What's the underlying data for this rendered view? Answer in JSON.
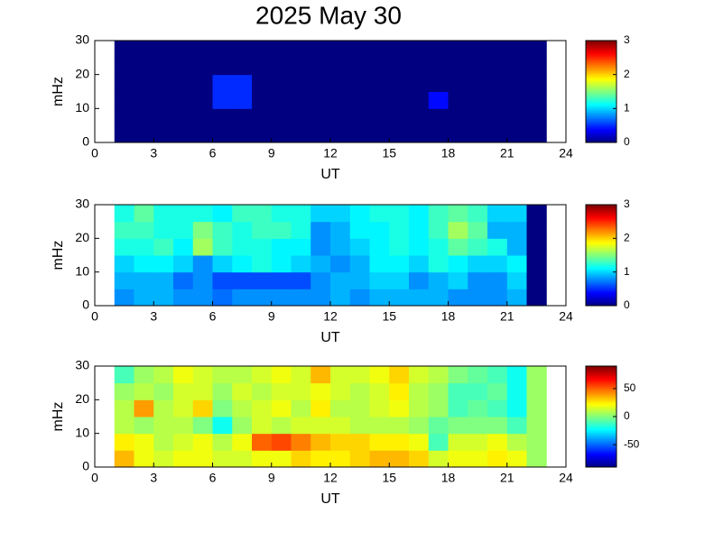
{
  "chart_data": [
    {
      "type": "heatmap",
      "title": "2025 May 30",
      "xlabel": "UT",
      "ylabel": "mHz",
      "colormap": "jet",
      "xbins": [
        1,
        2,
        3,
        4,
        5,
        6,
        7,
        8,
        9,
        10,
        11,
        12,
        13,
        14,
        15,
        16,
        17,
        18,
        19,
        20,
        21,
        22,
        23
      ],
      "ybins": [
        0,
        5,
        10,
        15,
        20,
        25,
        30
      ],
      "values": [
        [
          0,
          0,
          0,
          0,
          0,
          0,
          0,
          0,
          0,
          0,
          0,
          0,
          0,
          0,
          0,
          0,
          0,
          0,
          0,
          0,
          0,
          0
        ],
        [
          0,
          0,
          0,
          0,
          0,
          0,
          0,
          0,
          0,
          0,
          0,
          0,
          0,
          0,
          0,
          0,
          0,
          0,
          0,
          0,
          0,
          0
        ],
        [
          0,
          0,
          0,
          0,
          0,
          0.5,
          0.5,
          0,
          0,
          0,
          0,
          0,
          0,
          0,
          0,
          0,
          0.4,
          0,
          0,
          0,
          0,
          0
        ],
        [
          0,
          0,
          0,
          0,
          0,
          0.5,
          0.5,
          0,
          0,
          0,
          0,
          0,
          0,
          0,
          0,
          0,
          0,
          0,
          0,
          0,
          0,
          0
        ],
        [
          0,
          0,
          0,
          0,
          0,
          0,
          0,
          0,
          0,
          0,
          0,
          0,
          0,
          0,
          0,
          0,
          0,
          0,
          0,
          0,
          0,
          0
        ],
        [
          0,
          0,
          0,
          0,
          0,
          0,
          0,
          0,
          0,
          0,
          0,
          0,
          0,
          0,
          0,
          0,
          0,
          0,
          0,
          0,
          0,
          0
        ]
      ],
      "xlim": [
        0,
        24
      ],
      "xticks": [
        0,
        3,
        6,
        9,
        12,
        15,
        18,
        21,
        24
      ],
      "ylim": [
        0,
        30
      ],
      "yticks": [
        0,
        10,
        20,
        30
      ],
      "clim": [
        0,
        3
      ],
      "cticks": [
        0,
        1,
        2,
        3
      ]
    },
    {
      "type": "heatmap",
      "xlabel": "UT",
      "ylabel": "mHz",
      "colormap": "jet",
      "xbins": [
        1,
        2,
        3,
        4,
        5,
        6,
        7,
        8,
        9,
        10,
        11,
        12,
        13,
        14,
        15,
        16,
        17,
        18,
        19,
        20,
        21,
        22,
        23
      ],
      "ybins": [
        0,
        5,
        10,
        15,
        20,
        25,
        30
      ],
      "values": [
        [
          0.8,
          0.9,
          0.9,
          0.8,
          0.8,
          0.7,
          0.8,
          0.8,
          0.8,
          0.8,
          0.8,
          0.9,
          0.8,
          0.9,
          0.9,
          0.9,
          0.9,
          0.8,
          0.8,
          0.8,
          0.9,
          0
        ],
        [
          0.9,
          0.9,
          0.9,
          0.7,
          0.8,
          0.6,
          0.6,
          0.6,
          0.6,
          0.6,
          0.8,
          0.9,
          0.9,
          1.0,
          1.0,
          0.8,
          0.9,
          1.0,
          0.8,
          0.8,
          1.0,
          0
        ],
        [
          1.0,
          1.1,
          1.1,
          1.0,
          0.8,
          1.0,
          1.1,
          1.2,
          1.1,
          1.0,
          0.9,
          0.8,
          0.9,
          1.1,
          1.1,
          1.0,
          1.2,
          1.1,
          1.0,
          1.0,
          1.1,
          0
        ],
        [
          1.2,
          1.2,
          1.3,
          1.1,
          1.6,
          1.3,
          1.2,
          1.2,
          1.1,
          1.1,
          0.8,
          0.9,
          1.0,
          1.1,
          1.2,
          1.1,
          1.2,
          1.4,
          1.3,
          1.2,
          0.9,
          0
        ],
        [
          1.3,
          1.3,
          1.2,
          1.2,
          1.5,
          1.3,
          1.2,
          1.3,
          1.3,
          1.2,
          0.8,
          0.9,
          1.1,
          1.1,
          1.2,
          1.1,
          1.3,
          1.6,
          1.4,
          0.9,
          0.9,
          0
        ],
        [
          1.2,
          1.4,
          1.2,
          1.2,
          1.2,
          1.1,
          1.3,
          1.3,
          1.2,
          1.2,
          1.0,
          1.0,
          1.1,
          1.2,
          1.2,
          1.1,
          1.3,
          1.4,
          1.3,
          1.0,
          1.0,
          0
        ]
      ],
      "xlim": [
        0,
        24
      ],
      "xticks": [
        0,
        3,
        6,
        9,
        12,
        15,
        18,
        21,
        24
      ],
      "ylim": [
        0,
        30
      ],
      "yticks": [
        0,
        10,
        20,
        30
      ],
      "clim": [
        0,
        3
      ],
      "cticks": [
        0,
        1,
        2,
        3
      ]
    },
    {
      "type": "heatmap",
      "xlabel": "UT",
      "ylabel": "mHz",
      "colormap": "jet",
      "xbins": [
        1,
        2,
        3,
        4,
        5,
        6,
        7,
        8,
        9,
        10,
        11,
        12,
        13,
        14,
        15,
        16,
        17,
        18,
        19,
        20,
        21,
        22,
        23
      ],
      "ybins": [
        0,
        5,
        10,
        15,
        20,
        25,
        30
      ],
      "values": [
        [
          35,
          20,
          15,
          20,
          20,
          15,
          15,
          20,
          20,
          30,
          25,
          25,
          30,
          35,
          35,
          30,
          15,
          20,
          20,
          25,
          20,
          5
        ],
        [
          25,
          20,
          10,
          15,
          20,
          10,
          20,
          50,
          55,
          45,
          35,
          30,
          30,
          25,
          25,
          20,
          -10,
          15,
          15,
          20,
          10,
          5
        ],
        [
          10,
          5,
          10,
          10,
          0,
          -20,
          5,
          15,
          10,
          15,
          15,
          15,
          10,
          10,
          10,
          5,
          -5,
          0,
          0,
          0,
          -10,
          5
        ],
        [
          10,
          40,
          10,
          15,
          30,
          0,
          10,
          15,
          20,
          10,
          25,
          10,
          10,
          15,
          20,
          10,
          5,
          -10,
          -5,
          -10,
          -20,
          5
        ],
        [
          5,
          10,
          5,
          15,
          15,
          5,
          15,
          10,
          15,
          15,
          20,
          15,
          10,
          15,
          25,
          10,
          5,
          -10,
          -10,
          -5,
          -20,
          5
        ],
        [
          -10,
          5,
          10,
          20,
          15,
          10,
          10,
          15,
          20,
          15,
          35,
          15,
          15,
          20,
          30,
          15,
          10,
          0,
          -5,
          -10,
          -20,
          5
        ]
      ],
      "xlim": [
        0,
        24
      ],
      "xticks": [
        0,
        3,
        6,
        9,
        12,
        15,
        18,
        21,
        24
      ],
      "ylim": [
        0,
        30
      ],
      "yticks": [
        0,
        10,
        20,
        30
      ],
      "clim": [
        -90,
        90
      ],
      "cticks": [
        -50,
        0,
        50
      ]
    }
  ]
}
